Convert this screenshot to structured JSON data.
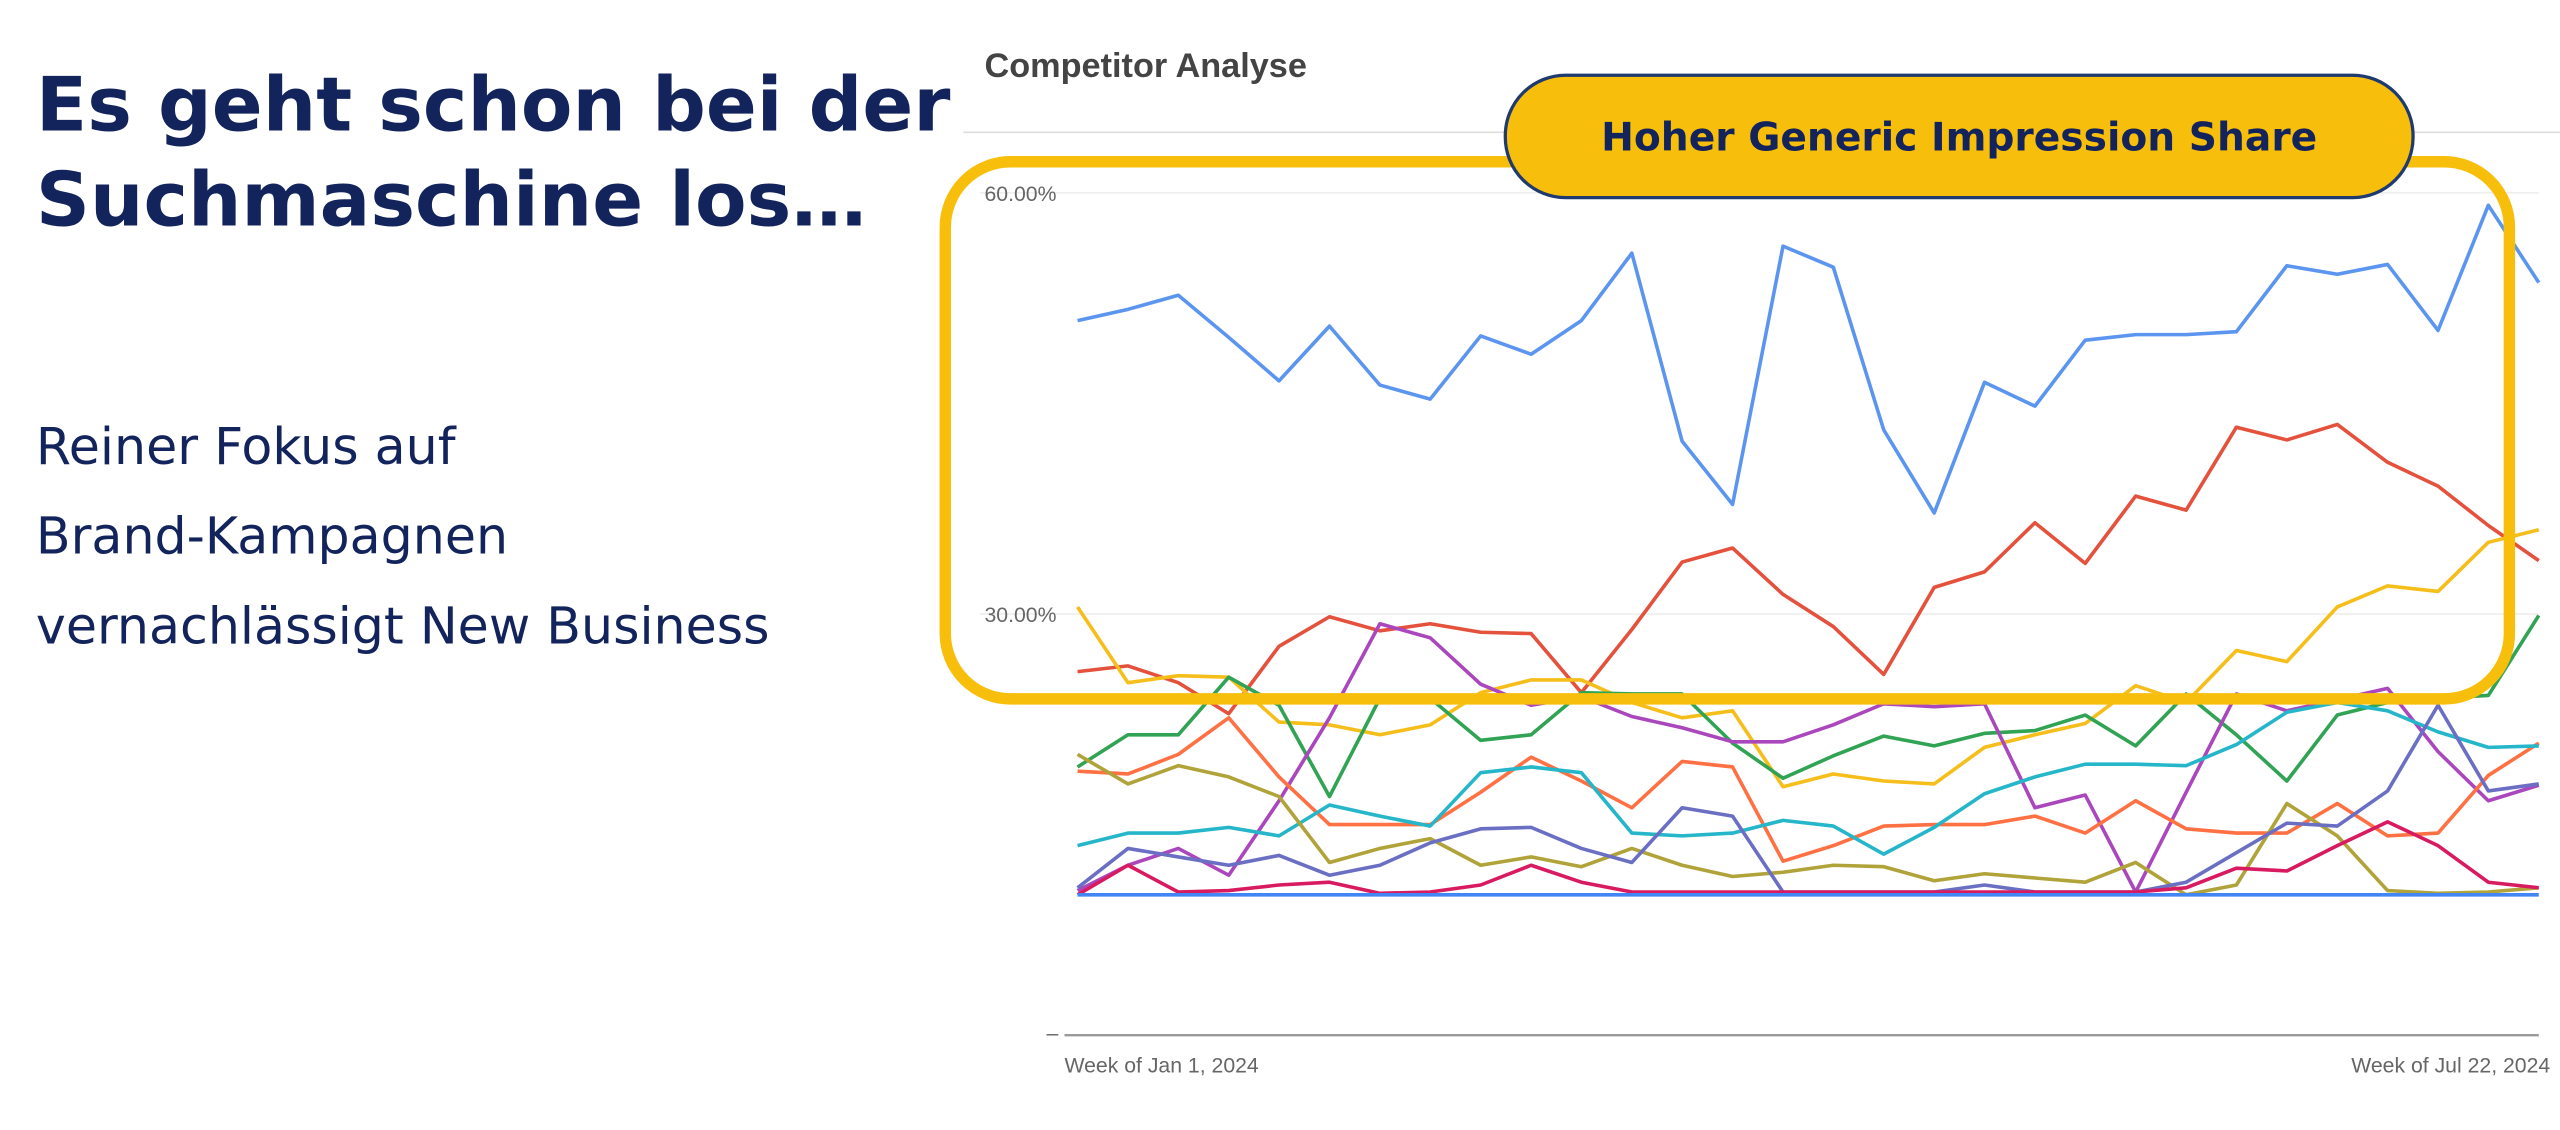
{
  "slide": {
    "heading": [
      "Es geht schon bei der",
      "Suchmaschine los…"
    ],
    "body": [
      "Reiner Fokus auf",
      "Brand-Kampagnen",
      "vernachlässigt New Business"
    ],
    "callout": "Hoher Generic Impression Share"
  },
  "chart_data": {
    "type": "line",
    "title": "Competitor Analyse",
    "categories": [
      "Week of Jan 1, 2024",
      null,
      null,
      null,
      null,
      null,
      null,
      null,
      null,
      null,
      null,
      null,
      null,
      null,
      null,
      null,
      null,
      null,
      null,
      null,
      null,
      null,
      null,
      null,
      null,
      null,
      null,
      null,
      null,
      "Week of Jul 22, 2024"
    ],
    "ylim": [
      0,
      64
    ],
    "yticks": [
      {
        "value": 0,
        "label": "–"
      },
      {
        "value": 30,
        "label": "30.00%"
      },
      {
        "value": 60,
        "label": "60.00%"
      }
    ],
    "grid": true,
    "series": [
      {
        "color": "#5b95f0",
        "values": [
          50.9,
          51.7,
          52.7,
          49.7,
          46.6,
          50.5,
          46.3,
          45.3,
          49.8,
          48.5,
          50.9,
          55.7,
          42.3,
          37.8,
          56.2,
          54.7,
          43.1,
          37.2,
          46.5,
          44.8,
          49.5,
          49.9,
          49.9,
          50.1,
          54.8,
          54.2,
          54.9,
          50.2,
          59.1,
          53.6
        ]
      },
      {
        "color": "#e4513c",
        "values": [
          25.9,
          26.3,
          25.1,
          22.9,
          27.7,
          29.8,
          28.8,
          29.3,
          28.7,
          28.6,
          24.4,
          28.9,
          33.7,
          34.7,
          31.4,
          29.1,
          25.7,
          31.9,
          33.0,
          36.5,
          33.6,
          38.4,
          37.4,
          43.3,
          42.4,
          43.5,
          40.8,
          39.1,
          36.3,
          33.8
        ]
      },
      {
        "color": "#f6be1b",
        "values": [
          30.5,
          25.1,
          25.6,
          25.5,
          22.3,
          22.1,
          21.4,
          22.1,
          24.4,
          25.3,
          25.3,
          23.7,
          22.6,
          23.1,
          17.7,
          18.6,
          18.1,
          17.9,
          20.5,
          21.4,
          22.2,
          24.9,
          23.7,
          27.4,
          26.6,
          30.5,
          32.0,
          31.6,
          35.1,
          36.0
        ]
      },
      {
        "color": "#31a354",
        "values": [
          19.1,
          21.4,
          21.4,
          25.5,
          23.5,
          17.0,
          24.0,
          24.0,
          21.0,
          21.4,
          24.4,
          24.3,
          24.3,
          20.8,
          18.3,
          19.9,
          21.3,
          20.6,
          21.5,
          21.7,
          22.8,
          20.6,
          24.3,
          21.4,
          18.1,
          22.8,
          23.7,
          24.0,
          24.2,
          29.9
        ]
      },
      {
        "color": "#ab47bc",
        "values": [
          10.3,
          12.1,
          13.3,
          11.4,
          16.7,
          22.6,
          29.3,
          28.3,
          25.0,
          23.5,
          24.1,
          22.7,
          21.9,
          20.9,
          20.9,
          22.1,
          23.6,
          23.4,
          23.6,
          16.2,
          17.1,
          10.2,
          17.3,
          24.3,
          23.1,
          23.9,
          24.7,
          20.2,
          16.7,
          17.8
        ]
      },
      {
        "color": "#ff7043",
        "values": [
          18.8,
          18.6,
          20.0,
          22.6,
          18.4,
          15.0,
          15.0,
          15.0,
          17.3,
          19.8,
          18.1,
          16.2,
          19.5,
          19.1,
          12.4,
          13.5,
          14.9,
          15.0,
          15.0,
          15.6,
          14.4,
          16.7,
          14.7,
          14.4,
          14.4,
          16.5,
          14.2,
          14.4,
          18.5,
          20.8
        ]
      },
      {
        "color": "#26b6c9",
        "values": [
          13.5,
          14.4,
          14.4,
          14.8,
          14.2,
          16.4,
          15.6,
          14.9,
          18.7,
          19.1,
          18.7,
          14.4,
          14.2,
          14.4,
          15.3,
          14.9,
          12.9,
          14.8,
          17.2,
          18.4,
          19.3,
          19.3,
          19.2,
          20.7,
          23.0,
          23.7,
          23.1,
          21.6,
          20.5,
          20.6
        ]
      },
      {
        "color": "#b0a33a",
        "values": [
          20.0,
          17.9,
          19.2,
          18.4,
          17.0,
          12.3,
          13.3,
          14.0,
          12.1,
          12.7,
          12.0,
          13.3,
          12.1,
          11.3,
          11.6,
          12.1,
          12.0,
          11.0,
          11.5,
          11.2,
          10.9,
          12.3,
          10.0,
          10.7,
          16.5,
          14.2,
          10.3,
          10.1,
          10.2,
          10.5
        ]
      },
      {
        "color": "#6b6fc4",
        "values": [
          10.5,
          13.3,
          12.7,
          12.1,
          12.8,
          11.4,
          12.1,
          13.7,
          14.7,
          14.8,
          13.3,
          12.3,
          16.2,
          15.6,
          10.2,
          10.2,
          10.2,
          10.2,
          10.7,
          10.2,
          10.2,
          10.2,
          10.9,
          13.0,
          15.1,
          14.9,
          17.4,
          23.5,
          17.4,
          17.9
        ]
      },
      {
        "color": "#d81b60",
        "values": [
          10.0,
          12.1,
          10.2,
          10.3,
          10.7,
          10.9,
          10.1,
          10.2,
          10.7,
          12.1,
          10.9,
          10.2,
          10.2,
          10.2,
          10.2,
          10.2,
          10.2,
          10.2,
          10.2,
          10.2,
          10.2,
          10.2,
          10.5,
          11.9,
          11.7,
          13.5,
          15.2,
          13.5,
          10.9,
          10.5
        ]
      },
      {
        "color": "#4285f4",
        "values": [
          10.0,
          10.0,
          10.0,
          10.0,
          10.0,
          10.0,
          10.0,
          10.0,
          10.0,
          10.0,
          10.0,
          10.0,
          10.0,
          10.0,
          10.0,
          10.0,
          10.0,
          10.0,
          10.0,
          10.0,
          10.0,
          10.0,
          10.0,
          10.0,
          10.0,
          10.0,
          10.0,
          10.0,
          10.0,
          10.0
        ]
      }
    ]
  }
}
